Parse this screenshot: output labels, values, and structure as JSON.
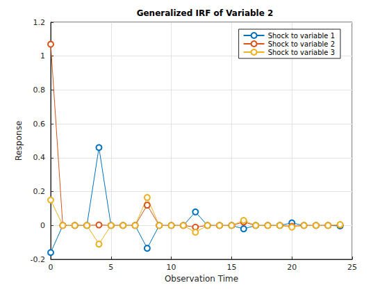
{
  "chart_data": {
    "type": "line",
    "title": "Generalized IRF of Variable 2",
    "x_label": "Observation Time",
    "y_label": "Response",
    "x": [
      0,
      1,
      2,
      3,
      4,
      5,
      6,
      7,
      8,
      9,
      10,
      11,
      12,
      13,
      14,
      15,
      16,
      17,
      18,
      19,
      20,
      21,
      22,
      23,
      24
    ],
    "series": [
      {
        "name": "Shock to variable 1",
        "color": "#0072bd",
        "values": [
          -0.16,
          0,
          0,
          0,
          0.46,
          0,
          0,
          0,
          -0.135,
          0,
          0,
          0,
          0.08,
          0,
          0,
          0,
          -0.02,
          0,
          0,
          0,
          0.015,
          0,
          0,
          0,
          -0.003
        ]
      },
      {
        "name": "Shock to variable 2",
        "color": "#d95319",
        "values": [
          1.07,
          0,
          0,
          0,
          0.003,
          0,
          0,
          0,
          0.12,
          0,
          0,
          0,
          -0.01,
          0,
          0,
          0,
          0.02,
          0,
          0,
          0,
          -0.005,
          0,
          0,
          0,
          0.003
        ]
      },
      {
        "name": "Shock to variable 3",
        "color": "#edb120",
        "values": [
          0.15,
          0,
          0,
          0,
          -0.11,
          0,
          0,
          0,
          0.165,
          0,
          0,
          0,
          -0.04,
          0,
          0,
          0,
          0.03,
          0,
          0,
          0,
          -0.01,
          0,
          0,
          0,
          0.005
        ]
      }
    ],
    "xlim": [
      0,
      25
    ],
    "xticks": [
      0,
      5,
      10,
      15,
      20,
      25
    ],
    "ylim": [
      -0.2,
      1.2
    ],
    "yticks": [
      -0.2,
      0,
      0.2,
      0.4,
      0.6,
      0.8,
      1,
      1.2
    ],
    "grid": true,
    "legend": "upper right",
    "marker": "circle",
    "line_style": "solid"
  }
}
